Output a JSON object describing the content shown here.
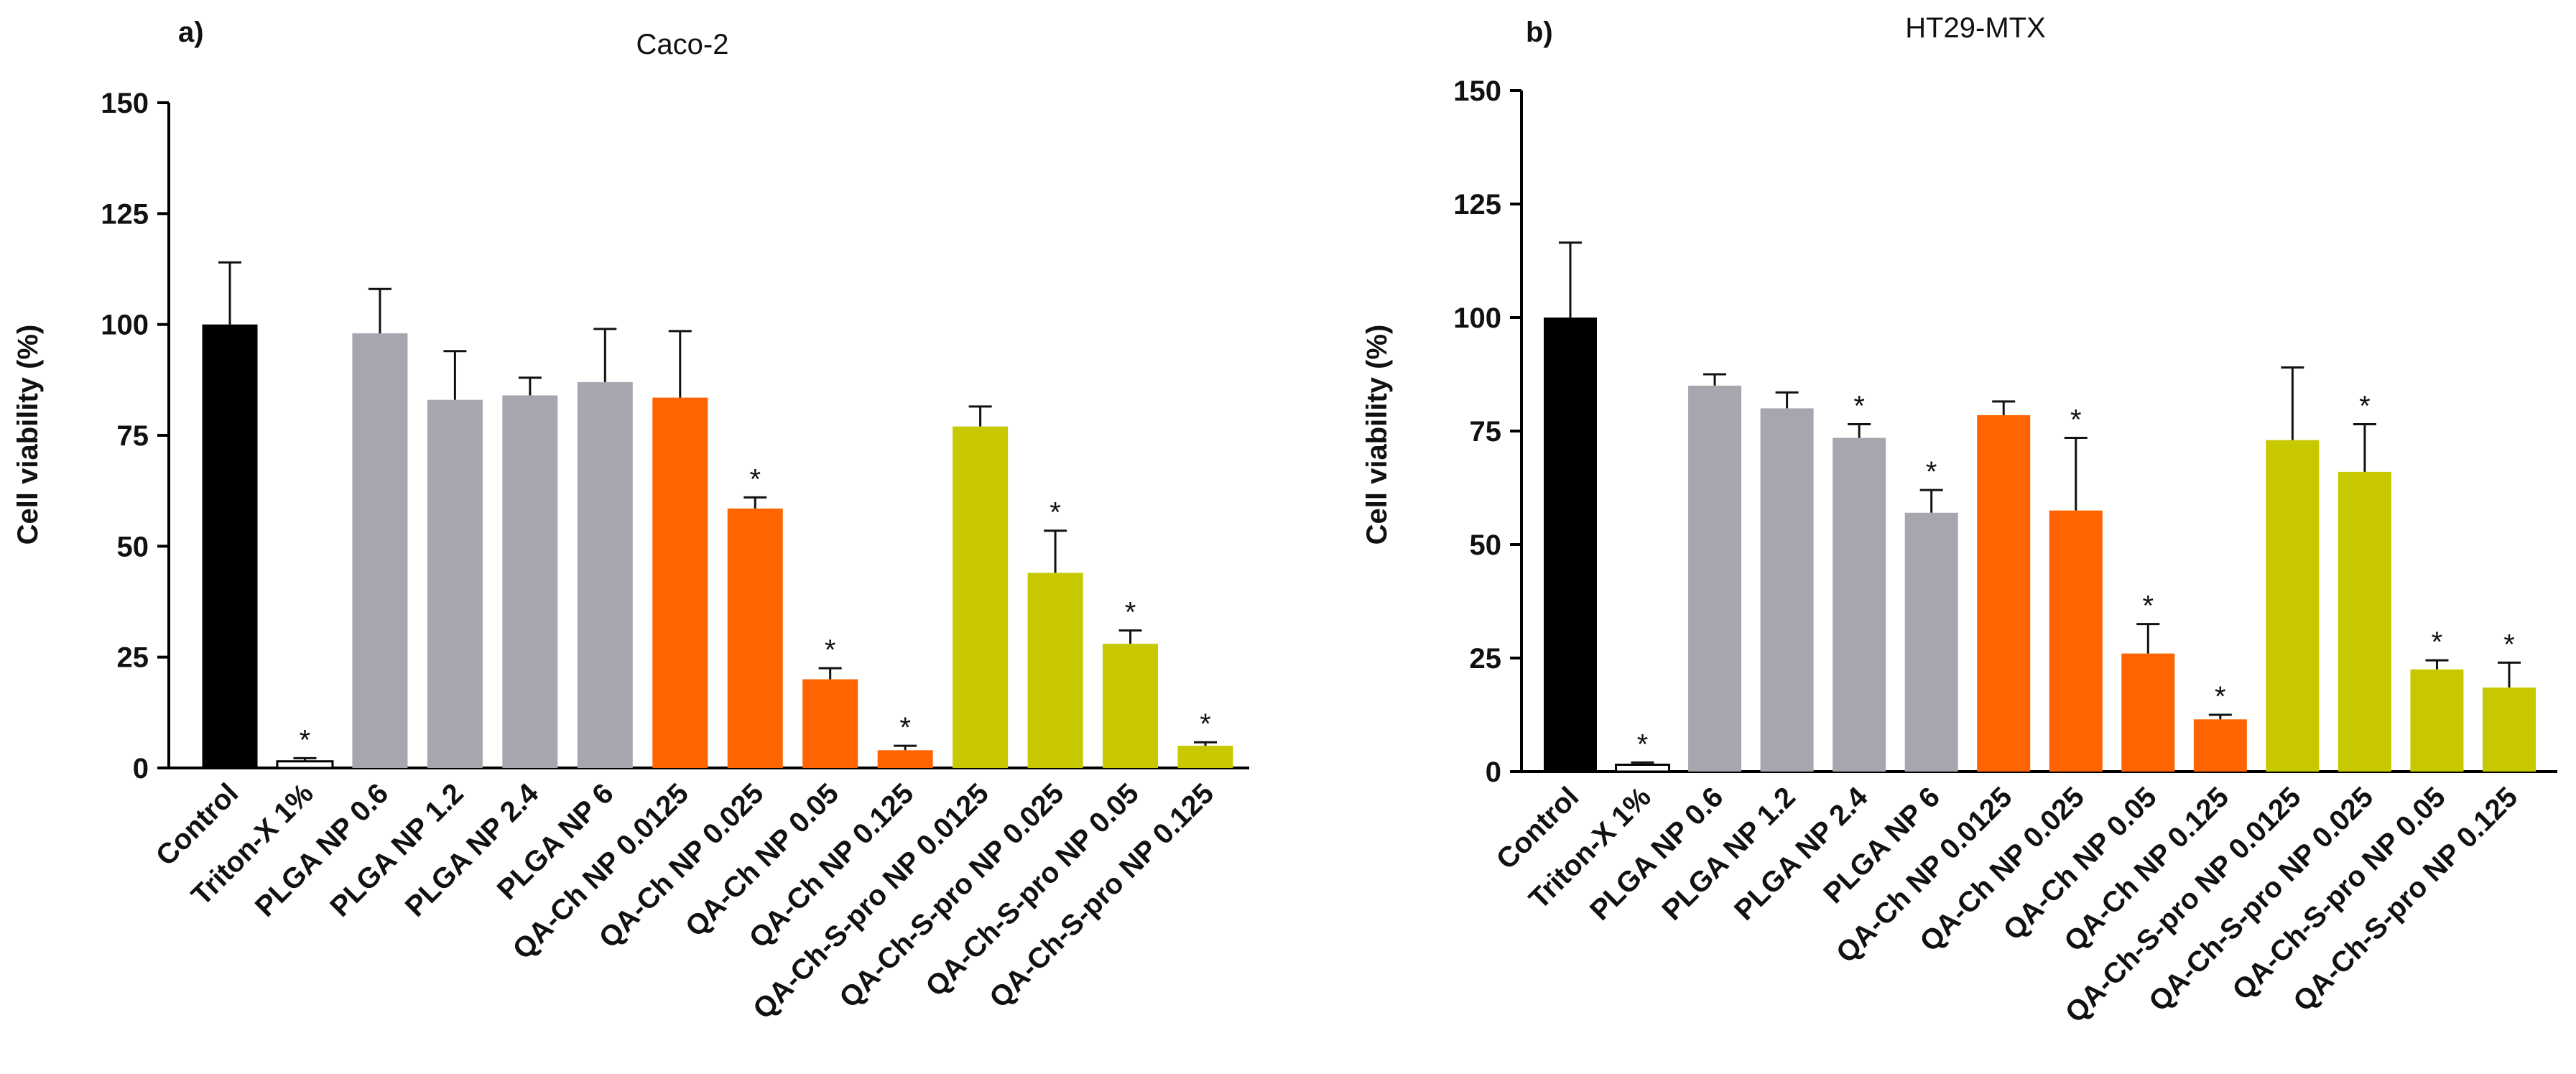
{
  "chart_data": [
    {
      "type": "bar",
      "panel_label": "a)",
      "title": "Caco-2",
      "xlabel": "",
      "ylabel": "Cell viability (%)",
      "ylim": [
        0,
        150
      ],
      "yticks": [
        "0",
        "25",
        "50",
        "75",
        "100",
        "125",
        "150"
      ],
      "categories": [
        "Control",
        "Triton-X 1%",
        "PLGA NP 0.6",
        "PLGA NP 1.2",
        "PLGA NP 2.4",
        "PLGA NP 6",
        "QA-Ch NP 0.0125",
        "QA-Ch NP 0.025",
        "QA-Ch NP 0.05",
        "QA-Ch NP 0.125",
        "QA-Ch-S-pro NP 0.0125",
        "QA-Ch-S-pro NP 0.025",
        "QA-Ch-S-pro NP 0.05",
        "QA-Ch-S-pro NP 0.125"
      ],
      "values": [
        100,
        1.5,
        98,
        83,
        84,
        87,
        83.5,
        58.5,
        20,
        4,
        77,
        44,
        28,
        5
      ],
      "errors": [
        14,
        0.7,
        10,
        11,
        4,
        12,
        15,
        2.5,
        2.5,
        1,
        4.5,
        9.5,
        3,
        0.8
      ],
      "significant": [
        "",
        "*",
        "",
        "",
        "",
        "",
        "",
        "*",
        "*",
        "*",
        "",
        "*",
        "*",
        "*"
      ],
      "colors": [
        "#000000",
        "#ffffff",
        "#a6a6ae",
        "#a6a6ae",
        "#a6a6ae",
        "#a6a6ae",
        "#ff6400",
        "#ff6400",
        "#ff6400",
        "#ff6400",
        "#c8c800",
        "#c8c800",
        "#c8c800",
        "#c8c800"
      ]
    },
    {
      "type": "bar",
      "panel_label": "b)",
      "title": "HT29-MTX",
      "xlabel": "",
      "ylabel": "Cell viability (%)",
      "ylim": [
        0,
        150
      ],
      "yticks": [
        "0",
        "25",
        "50",
        "75",
        "100",
        "125",
        "150"
      ],
      "categories": [
        "Control",
        "Triton-X 1%",
        "PLGA NP 0.6",
        "PLGA NP 1.2",
        "PLGA NP 2.4",
        "PLGA NP 6",
        "QA-Ch NP 0.0125",
        "QA-Ch NP 0.025",
        "QA-Ch NP 0.05",
        "QA-Ch NP 0.125",
        "QA-Ch-S-pro NP 0.0125",
        "QA-Ch-S-pro NP 0.025",
        "QA-Ch-S-pro NP 0.05",
        "QA-Ch-S-pro NP 0.125"
      ],
      "values": [
        100,
        1.5,
        85,
        80,
        73.5,
        57,
        78.5,
        57.5,
        26,
        11.5,
        73,
        66,
        22.5,
        18.5
      ],
      "errors": [
        16.5,
        0.5,
        2.5,
        3.5,
        3,
        5,
        3,
        16,
        6.5,
        1,
        16,
        10.5,
        2,
        5.5
      ],
      "significant": [
        "",
        "*",
        "",
        "",
        "*",
        "*",
        "",
        "*",
        "*",
        "*",
        "",
        "*",
        "*",
        "*"
      ],
      "colors": [
        "#000000",
        "#ffffff",
        "#a6a6ae",
        "#a6a6ae",
        "#a6a6ae",
        "#a6a6ae",
        "#ff6400",
        "#ff6400",
        "#ff6400",
        "#ff6400",
        "#c8c800",
        "#c8c800",
        "#c8c800",
        "#c8c800"
      ]
    }
  ]
}
